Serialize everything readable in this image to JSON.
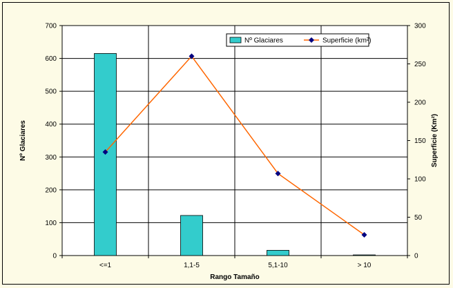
{
  "chart_data": {
    "type": "bar",
    "xlabel": "Rango Tamaño",
    "ylabel": "Nº Glaciares",
    "y2label": "Superficie (Km²)",
    "categories": [
      "<=1",
      "1,1-5",
      "5,1-10",
      "> 10"
    ],
    "ylim": [
      0,
      700
    ],
    "y2lim": [
      0,
      300
    ],
    "yticks": [
      0,
      100,
      200,
      300,
      400,
      500,
      600,
      700
    ],
    "y2ticks": [
      0,
      50,
      100,
      150,
      200,
      250,
      300
    ],
    "grid": true,
    "legend_position": "top-right",
    "series": [
      {
        "name": "Nº Glaciares",
        "kind": "bar",
        "axis": "left",
        "color": "#33cccc",
        "values": [
          615,
          122,
          16,
          2
        ]
      },
      {
        "name": "Superficie (km²)",
        "kind": "line",
        "axis": "right",
        "color": "#ff6600",
        "marker_color": "#000080",
        "values": [
          135,
          260,
          107,
          27
        ]
      }
    ]
  }
}
